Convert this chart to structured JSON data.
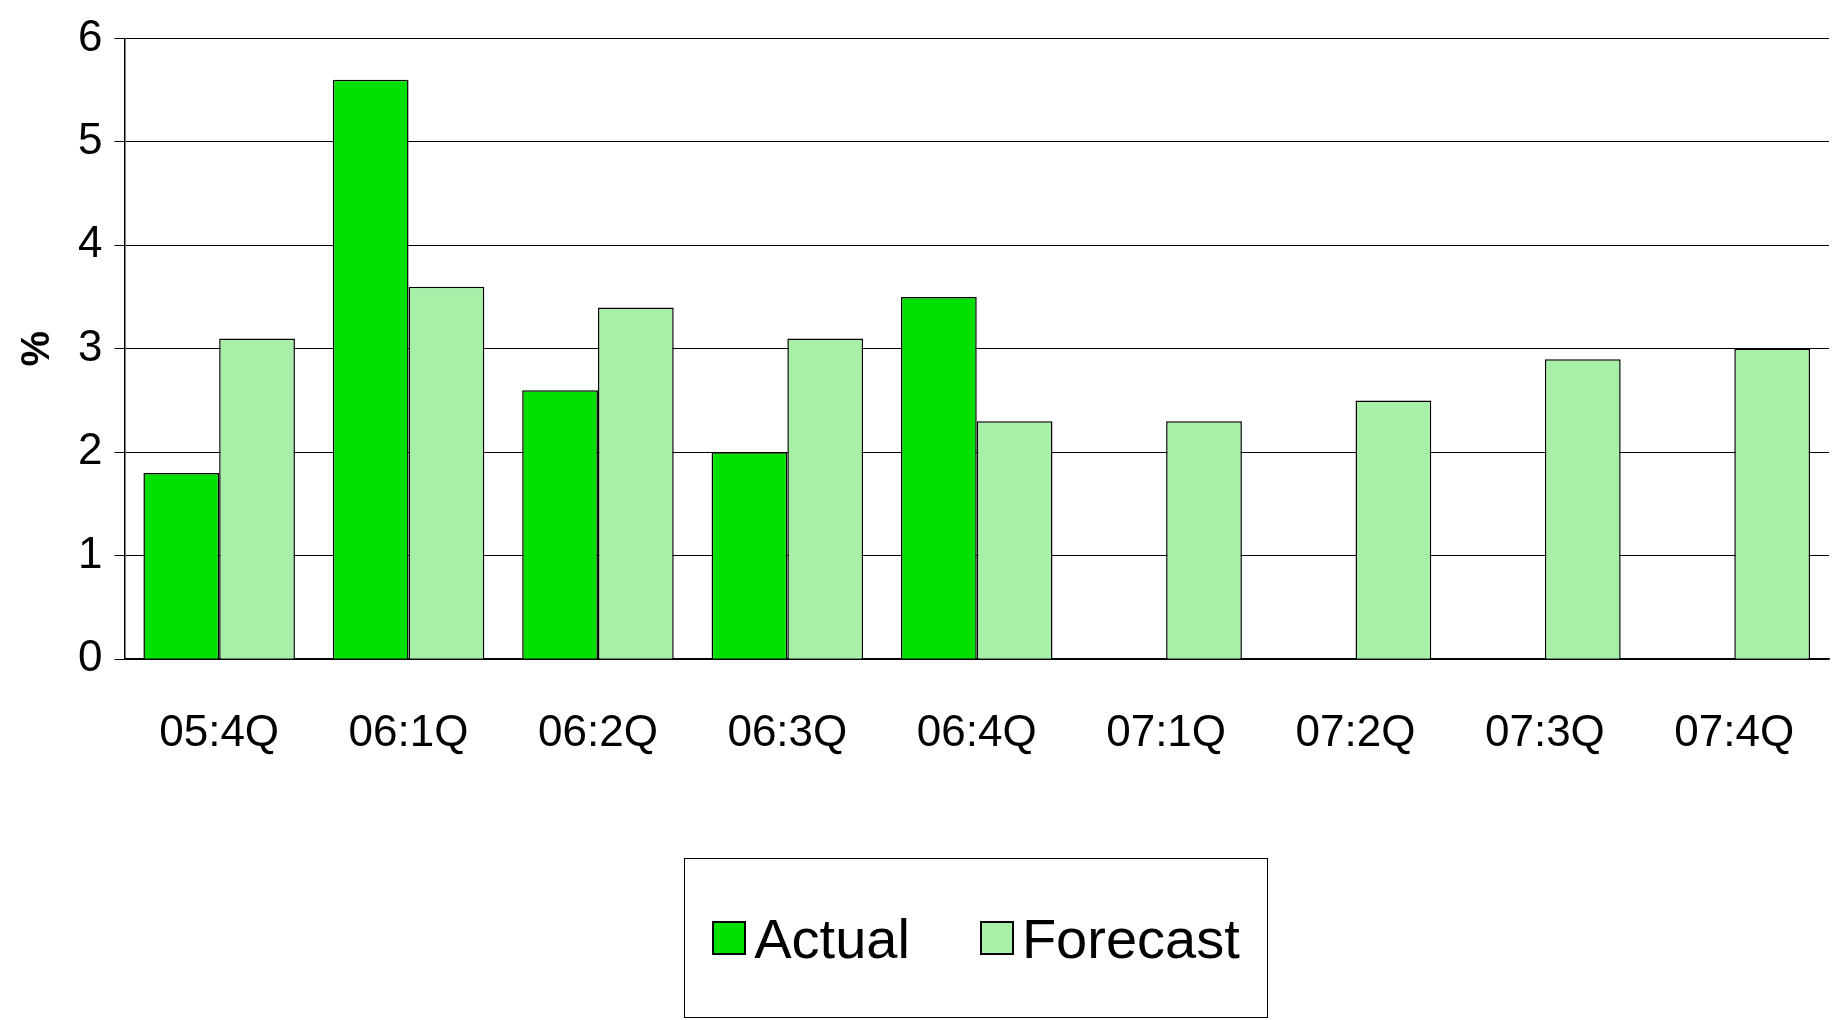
{
  "chart_data": {
    "type": "bar",
    "ylabel": "%",
    "categories": [
      "05:4Q",
      "06:1Q",
      "06:2Q",
      "06:3Q",
      "06:4Q",
      "07:1Q",
      "07:2Q",
      "07:3Q",
      "07:4Q"
    ],
    "series": [
      {
        "name": "Actual",
        "color": "#00e000",
        "values": [
          1.8,
          5.6,
          2.6,
          2.0,
          3.5,
          null,
          null,
          null,
          null
        ]
      },
      {
        "name": "Forecast",
        "color": "#a8f0a8",
        "values": [
          3.1,
          3.6,
          3.4,
          3.1,
          2.3,
          2.3,
          2.5,
          2.9,
          3.0
        ]
      }
    ],
    "ylim": [
      0,
      6
    ],
    "yticks": [
      0,
      1,
      2,
      3,
      4,
      5,
      6
    ],
    "grid": "y",
    "legend": "bottom"
  }
}
